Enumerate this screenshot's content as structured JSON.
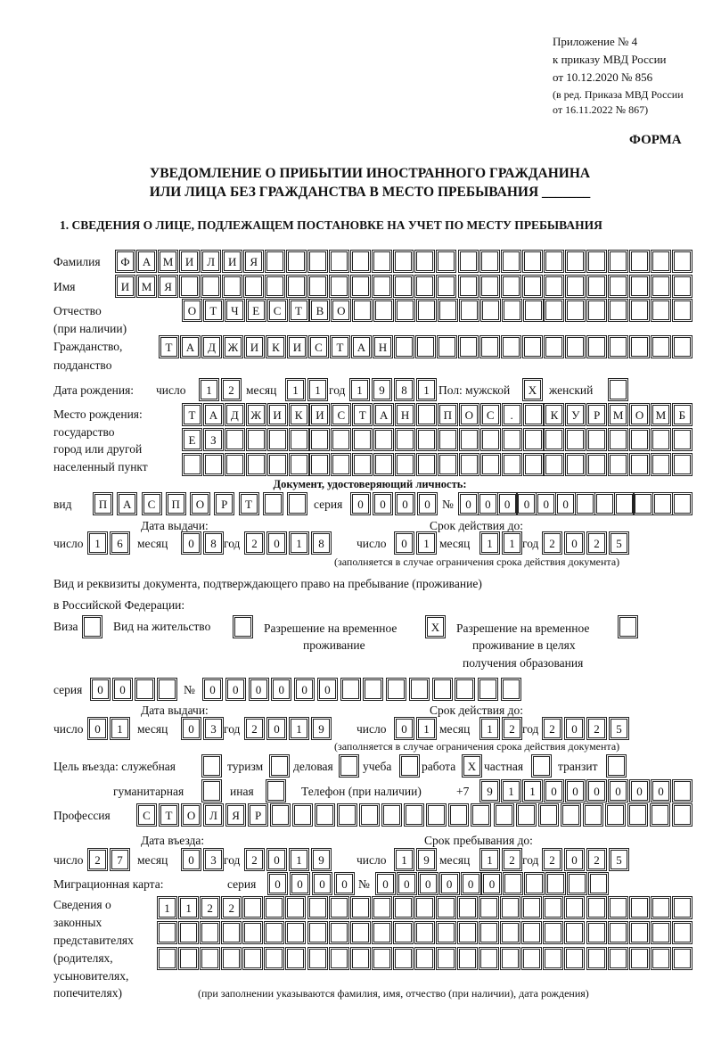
{
  "header": {
    "annex": "Приложение № 4",
    "order": "к приказу МВД России",
    "order_date": "от 10.12.2020 № 856",
    "edition_1": "(в ред. Приказа МВД России",
    "edition_2": "от 16.11.2022 № 867)",
    "form": "ФОРМА"
  },
  "title": {
    "line1": "УВЕДОМЛЕНИЕ О ПРИБЫТИИ ИНОСТРАННОГО ГРАЖДАНИНА",
    "line2": "ИЛИ ЛИЦА БЕЗ ГРАЖДАНСТВА В МЕСТО ПРЕБЫВАНИЯ _______",
    "section1": "1. СВЕДЕНИЯ О ЛИЦЕ, ПОДЛЕЖАЩЕМ ПОСТАНОВКЕ НА УЧЕТ ПО МЕСТУ ПРЕБЫВАНИЯ"
  },
  "person": {
    "surname": {
      "label": "Фамилия",
      "value": "ФАМИЛИЯ",
      "boxes": 27
    },
    "name": {
      "label": "Имя",
      "value": "ИМЯ",
      "boxes": 27
    },
    "patronymic": {
      "label": "Отчество",
      "label2": "(при наличии)",
      "value": "ОТЧЕСТВО",
      "boxes": 24
    },
    "citizenship": {
      "label": "Гражданство,",
      "label2": "подданство",
      "value": "ТАДЖИКИСТАН",
      "boxes": 25
    },
    "birth_date": {
      "label": "Дата рождения:",
      "day_label": "число",
      "month_label": "месяц",
      "year_label": "год",
      "day": "12",
      "month": "11",
      "year": "1981"
    },
    "sex": {
      "label": "Пол: мужской",
      "male": "X",
      "female_label": "женский",
      "female": ""
    },
    "birth_place": {
      "label1": "Место рождения:",
      "label2": "государство",
      "label3": "город или другой",
      "label4": "населенный пункт",
      "row1": "ТАДЖИКИСТАН ПОС. КУРМОМБ",
      "row2": "ЕЗ",
      "row3": "",
      "boxes": 24
    }
  },
  "identity_doc": {
    "heading": "Документ, удостоверяющий личность:",
    "kind_label": "вид",
    "kind": "ПАСПОРТ",
    "kind_boxes": 9,
    "series_label": "серия",
    "series": "0000",
    "series_boxes": 4,
    "number_label": "№",
    "number": "000000",
    "number_boxes": 12,
    "issue_label": "Дата выдачи:",
    "valid_label": "Срок действия до:",
    "day_label": "число",
    "month_label": "месяц",
    "year_label": "год",
    "issue": {
      "day": "16",
      "month": "08",
      "year": "2018"
    },
    "valid": {
      "day": "01",
      "month": "11",
      "year": "2025"
    },
    "note": "(заполняется в случае ограничения срока действия документа)"
  },
  "residence_doc": {
    "line1": "Вид и реквизиты документа, подтверждающего право на пребывание (проживание)",
    "line2": "в Российской Федерации:",
    "visa": {
      "label": "Виза",
      "mark": ""
    },
    "residence_permit": {
      "label": "Вид на жительство",
      "mark": ""
    },
    "temp_permit": {
      "label1": "Разрешение на временное",
      "label2": "проживание",
      "mark": "X"
    },
    "temp_permit_edu": {
      "label1": "Разрешение на временное",
      "label2": "проживание в целях",
      "label3": "получения образования",
      "mark": ""
    },
    "series_label": "серия",
    "series": "00",
    "series_boxes": 4,
    "number_label": "№",
    "number": "000000",
    "number_boxes": 14,
    "issue_label": "Дата выдачи:",
    "valid_label": "Срок действия до:",
    "day_label": "число",
    "month_label": "месяц",
    "year_label": "год",
    "issue": {
      "day": "01",
      "month": "03",
      "year": "2019"
    },
    "valid": {
      "day": "01",
      "month": "12",
      "year": "2025"
    },
    "note": "(заполняется в случае ограничения срока действия документа)"
  },
  "purpose": {
    "label": "Цель въезда: служебная",
    "official": "",
    "tourism_label": "туризм",
    "tourism": "",
    "business_label": "деловая",
    "business": "",
    "study_label": "учеба",
    "study": "",
    "work_label": "работа",
    "work": "X",
    "private_label": "частная",
    "private": "",
    "transit_label": "транзит",
    "transit": "",
    "humanitarian_label": "гуманитарная",
    "humanitarian": "",
    "other_label": "иная",
    "other": ""
  },
  "phone": {
    "label": "Телефон (при наличии)",
    "prefix": "+7",
    "value": "911000000",
    "boxes": 10
  },
  "profession": {
    "label": "Профессия",
    "value": "СТОЛЯР",
    "boxes": 25
  },
  "entry": {
    "entry_label": "Дата въезда:",
    "stay_label": "Срок пребывания до:",
    "day_label": "число",
    "month_label": "месяц",
    "year_label": "год",
    "entry": {
      "day": "27",
      "month": "03",
      "year": "2019"
    },
    "stay": {
      "day": "19",
      "month": "12",
      "year": "2025"
    }
  },
  "migration_card": {
    "label": "Миграционная карта:",
    "series_label": "серия",
    "series": "0000",
    "series_boxes": 4,
    "number_label": "№",
    "number": "000000",
    "number_boxes": 11
  },
  "legal_reps": {
    "label1": "Сведения о",
    "label2": "законных",
    "label3": "представителях",
    "label4": "(родителях,",
    "label5": "усыновителях,",
    "label6": "попечителях)",
    "row1": "1122",
    "row2": "",
    "row3": "",
    "boxes": 25,
    "note": "(при заполнении указываются фамилия, имя, отчество (при наличии), дата рождения)"
  }
}
